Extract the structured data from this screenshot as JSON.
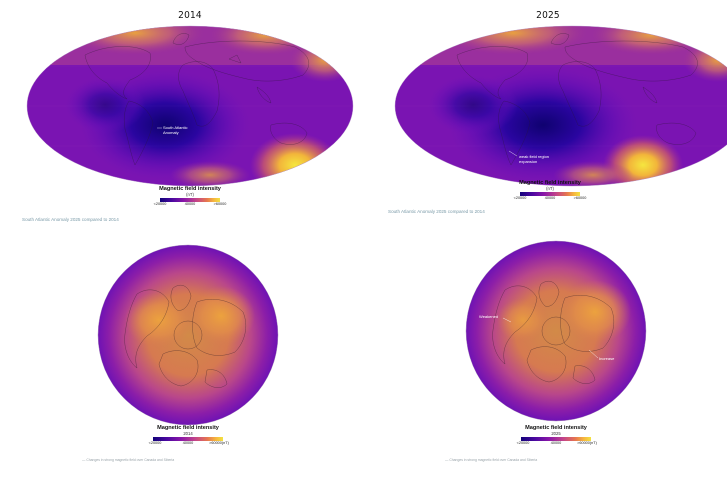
{
  "colors": {
    "low": "#12027a",
    "mid_low": "#4b08a0",
    "mid": "#8a17a8",
    "mid_high": "#c2438a",
    "high": "#e6774f",
    "peak": "#f2e241",
    "background": "#ffffff",
    "caption": "#7a9aa8"
  },
  "maps": {
    "left_top": {
      "title": "2014",
      "annotation_saa": "South Atlantic\nAnomaly"
    },
    "right_top": {
      "title": "2025",
      "annotation_expansion": "weak field region\nexpansion"
    },
    "left_bottom": {},
    "right_bottom": {
      "annotation_west": "Weakened",
      "annotation_east": "Increase"
    }
  },
  "legends": {
    "left_top": {
      "title": "Magnetic field intensity",
      "subtitle": "(nT)",
      "ticks": [
        "<20000",
        "40000",
        ">60000"
      ]
    },
    "right_top": {
      "title": "Magnetic field intensity",
      "subtitle": "(nT)",
      "ticks": [
        "<20000",
        "40000",
        ">60000"
      ]
    },
    "left_bottom": {
      "title": "Magnetic field intensity",
      "subtitle": "2014",
      "ticks": [
        "<20000",
        "40000",
        ">60000(nT)"
      ]
    },
    "right_bottom": {
      "title": "Magnetic field intensity",
      "subtitle": "2025",
      "ticks": [
        "<20000",
        "40000",
        ">60000(nT)"
      ]
    }
  },
  "captions": {
    "left_top": "South Atlantic Anomaly 2025 compared to 2014",
    "right_top": "South Atlantic Anomaly 2025 compared to 2014"
  },
  "footnotes": {
    "left_bottom": "— Changes in strong magnetic field over Canada and Siberia",
    "right_bottom": "— Changes in strong magnetic field over Canada and Siberia"
  }
}
